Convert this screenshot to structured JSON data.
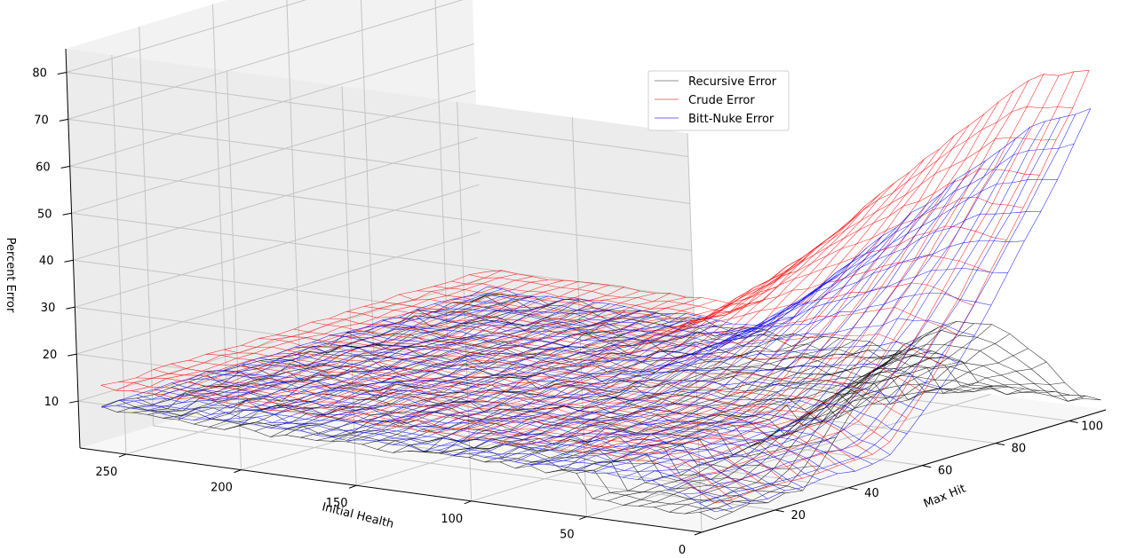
{
  "chart_data": {
    "type": "surface-wireframe-3d",
    "title": "",
    "xlabel": "Max Hit",
    "ylabel": "Initial Health",
    "zlabel": "Percent Error",
    "xlim": [
      0,
      110
    ],
    "ylim": [
      0,
      270
    ],
    "zlim": [
      0,
      85
    ],
    "x_ticks": [
      "20",
      "40",
      "60",
      "80",
      "100"
    ],
    "y_ticks": [
      "0",
      "50",
      "100",
      "150",
      "200",
      "250"
    ],
    "z_ticks": [
      "10",
      "20",
      "30",
      "40",
      "50",
      "60",
      "70",
      "80"
    ],
    "grid": true,
    "legend_position": "top-right",
    "series": [
      {
        "name": "Recursive Error",
        "color": "#000000",
        "peak_percent_error": 27,
        "surface": "rises from ~0 at low max hit, peaks near max hit 90 at low initial health"
      },
      {
        "name": "Crude Error",
        "color": "#ff0000",
        "peak_percent_error": 80,
        "surface": "~12% plateau at high initial health, rising to ~80% at max hit 110, low initial health"
      },
      {
        "name": "Bitt-Nuke Error",
        "color": "#0000ff",
        "peak_percent_error": 70,
        "surface": "~8% plateau at high initial health, rising to ~70% at max hit 110, low initial health"
      }
    ]
  }
}
